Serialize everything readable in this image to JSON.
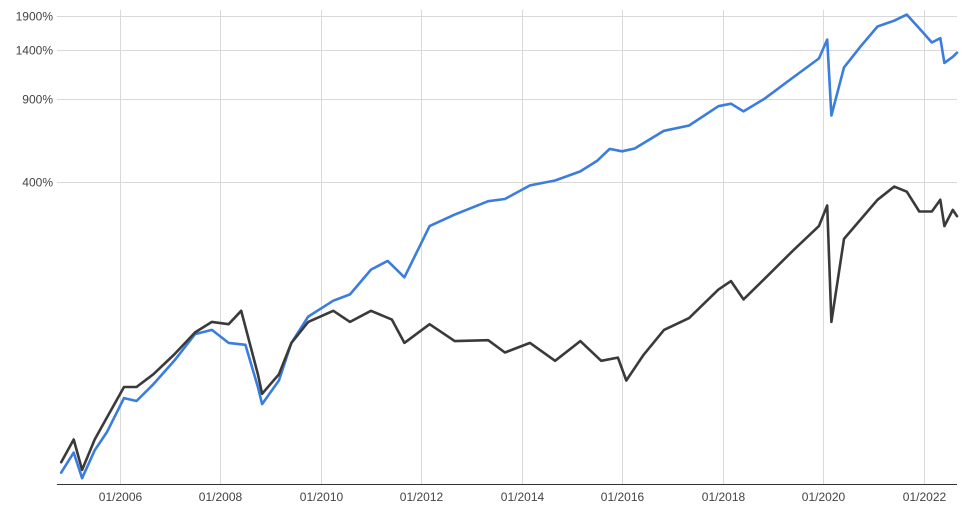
{
  "chart_data": {
    "type": "line",
    "title": "",
    "xlabel": "",
    "ylabel": "",
    "y_scale": "log(1 + value/100)",
    "grid": true,
    "legend": "none",
    "xlim": [
      "2004-10",
      "2022-09"
    ],
    "ylim": [
      -60,
      2000
    ],
    "x_ticks": [
      {
        "date": "2006-01",
        "label": "01/2006"
      },
      {
        "date": "2008-01",
        "label": "01/2008"
      },
      {
        "date": "2010-01",
        "label": "01/2010"
      },
      {
        "date": "2012-01",
        "label": "01/2012"
      },
      {
        "date": "2014-01",
        "label": "01/2014"
      },
      {
        "date": "2016-01",
        "label": "01/2016"
      },
      {
        "date": "2018-01",
        "label": "01/2018"
      },
      {
        "date": "2020-01",
        "label": "01/2020"
      },
      {
        "date": "2022-01",
        "label": "01/2022"
      }
    ],
    "y_ticks": [
      {
        "value": 1900,
        "label": "1900%"
      },
      {
        "value": 1400,
        "label": "1400%"
      },
      {
        "value": 900,
        "label": "900%"
      },
      {
        "value": 400,
        "label": "400%"
      }
    ],
    "series": [
      {
        "color": "#3b7ddd",
        "points": [
          [
            "2004-11",
            -56
          ],
          [
            "2005-02",
            -48
          ],
          [
            "2005-04",
            -58
          ],
          [
            "2005-07",
            -47
          ],
          [
            "2005-10",
            -38
          ],
          [
            "2006-02",
            -18
          ],
          [
            "2006-05",
            -20
          ],
          [
            "2006-09",
            -8
          ],
          [
            "2007-02",
            12
          ],
          [
            "2007-07",
            40
          ],
          [
            "2007-11",
            45
          ],
          [
            "2008-03",
            30
          ],
          [
            "2008-07",
            28
          ],
          [
            "2008-10",
            -10
          ],
          [
            "2008-11",
            -22
          ],
          [
            "2009-03",
            -5
          ],
          [
            "2009-06",
            30
          ],
          [
            "2009-10",
            62
          ],
          [
            "2010-04",
            85
          ],
          [
            "2010-08",
            95
          ],
          [
            "2011-01",
            140
          ],
          [
            "2011-05",
            158
          ],
          [
            "2011-09",
            125
          ],
          [
            "2012-03",
            245
          ],
          [
            "2012-09",
            280
          ],
          [
            "2013-05",
            325
          ],
          [
            "2013-09",
            333
          ],
          [
            "2014-03",
            385
          ],
          [
            "2014-09",
            405
          ],
          [
            "2015-03",
            445
          ],
          [
            "2015-07",
            495
          ],
          [
            "2015-10",
            558
          ],
          [
            "2016-01",
            545
          ],
          [
            "2016-04",
            560
          ],
          [
            "2016-11",
            665
          ],
          [
            "2017-05",
            700
          ],
          [
            "2017-12",
            840
          ],
          [
            "2018-03",
            860
          ],
          [
            "2018-06",
            800
          ],
          [
            "2018-11",
            900
          ],
          [
            "2019-06",
            1100
          ],
          [
            "2019-12",
            1300
          ],
          [
            "2020-02",
            1540
          ],
          [
            "2020-03",
            770
          ],
          [
            "2020-06",
            1200
          ],
          [
            "2020-10",
            1450
          ],
          [
            "2021-02",
            1730
          ],
          [
            "2021-06",
            1820
          ],
          [
            "2021-09",
            1920
          ],
          [
            "2021-12",
            1700
          ],
          [
            "2022-03",
            1500
          ],
          [
            "2022-05",
            1560
          ],
          [
            "2022-06",
            1250
          ],
          [
            "2022-08",
            1320
          ],
          [
            "2022-09",
            1370
          ]
        ]
      },
      {
        "color": "#3a3a3a",
        "points": [
          [
            "2004-11",
            -52
          ],
          [
            "2005-02",
            -42
          ],
          [
            "2005-04",
            -55
          ],
          [
            "2005-07",
            -42
          ],
          [
            "2005-10",
            -30
          ],
          [
            "2006-02",
            -10
          ],
          [
            "2006-05",
            -10
          ],
          [
            "2006-09",
            0
          ],
          [
            "2007-02",
            18
          ],
          [
            "2007-07",
            42
          ],
          [
            "2007-11",
            55
          ],
          [
            "2008-03",
            52
          ],
          [
            "2008-06",
            70
          ],
          [
            "2008-10",
            0
          ],
          [
            "2008-11",
            -15
          ],
          [
            "2009-03",
            0
          ],
          [
            "2009-06",
            30
          ],
          [
            "2009-10",
            55
          ],
          [
            "2010-04",
            70
          ],
          [
            "2010-08",
            55
          ],
          [
            "2011-01",
            70
          ],
          [
            "2011-06",
            58
          ],
          [
            "2011-09",
            30
          ],
          [
            "2012-03",
            52
          ],
          [
            "2012-09",
            32
          ],
          [
            "2013-05",
            33
          ],
          [
            "2013-09",
            20
          ],
          [
            "2014-03",
            30
          ],
          [
            "2014-09",
            12
          ],
          [
            "2015-03",
            32
          ],
          [
            "2015-08",
            12
          ],
          [
            "2015-12",
            15
          ],
          [
            "2016-02",
            -5
          ],
          [
            "2016-06",
            17
          ],
          [
            "2016-11",
            45
          ],
          [
            "2017-05",
            60
          ],
          [
            "2017-12",
            103
          ],
          [
            "2018-03",
            118
          ],
          [
            "2018-06",
            87
          ],
          [
            "2018-11",
            122
          ],
          [
            "2019-06",
            183
          ],
          [
            "2019-12",
            245
          ],
          [
            "2020-02",
            310
          ],
          [
            "2020-03",
            55
          ],
          [
            "2020-06",
            210
          ],
          [
            "2020-10",
            265
          ],
          [
            "2021-02",
            330
          ],
          [
            "2021-06",
            380
          ],
          [
            "2021-09",
            360
          ],
          [
            "2021-12",
            290
          ],
          [
            "2022-03",
            290
          ],
          [
            "2022-05",
            330
          ],
          [
            "2022-06",
            245
          ],
          [
            "2022-08",
            295
          ],
          [
            "2022-09",
            275
          ]
        ]
      }
    ]
  }
}
